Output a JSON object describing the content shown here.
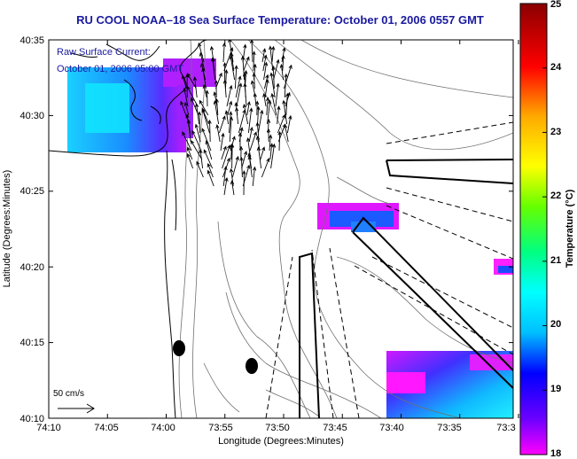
{
  "title": "RU COOL  NOAA–18  Sea Surface Temperature:  October 01, 2006 0557 GMT",
  "current_label": {
    "line1": "Raw Surface Current:",
    "line2": "October 01, 2006 05:00 GMT"
  },
  "scale_label": "50 cm/s",
  "xaxis": {
    "label": "Longitude (Degrees:Minutes)",
    "ticks": [
      "74:10",
      "74:05",
      "74:00",
      "73:55",
      "73:50",
      "73:45",
      "73:40",
      "73:35",
      "73:3"
    ]
  },
  "yaxis": {
    "label": "Latitude (Degrees:Minutes)",
    "ticks": [
      "40:35",
      "40:30",
      "40:25",
      "40:20",
      "40:15",
      "40:10"
    ]
  },
  "colorbar": {
    "label": "Temperature (°C)",
    "ticks": [
      "25",
      "24",
      "23",
      "22",
      "21",
      "20",
      "19",
      "18"
    ],
    "min": 18,
    "max": 25,
    "colormap": [
      "#ff00ff",
      "#6a00ff",
      "#0000ff",
      "#00bfff",
      "#00ffff",
      "#00ff80",
      "#66ff00",
      "#ffff00",
      "#ffaa00",
      "#ff0000",
      "#8a0000"
    ]
  },
  "colors": {
    "title": "#1a1aa0",
    "annotation": "#1a1aa0",
    "coast": "#000000",
    "bathymetry": "#6e6e6e"
  }
}
